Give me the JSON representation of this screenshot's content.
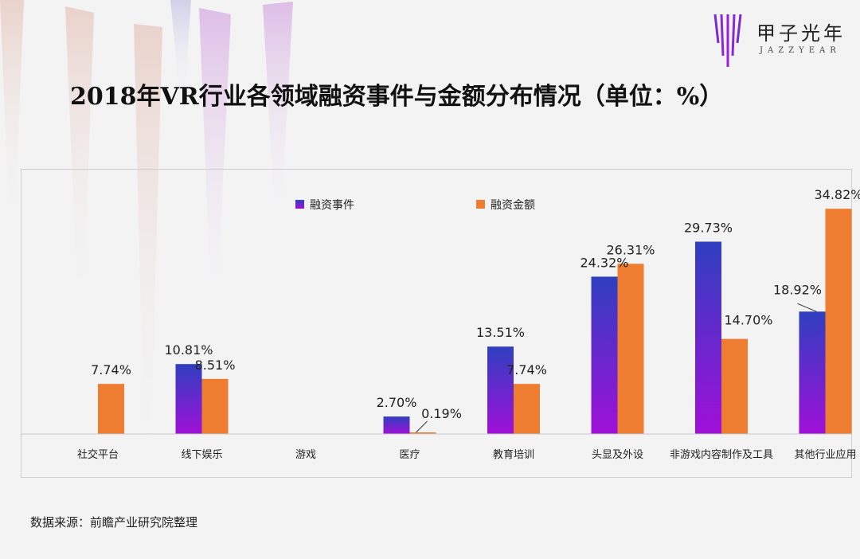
{
  "brand": {
    "name": "甲子光年",
    "subtitle": "JAZZYEAR"
  },
  "title": "2018年VR行业各领域融资事件与金额分布情况（单位：%）",
  "source": "数据来源：前瞻产业研究院整理",
  "colors": {
    "events_top": "#2f3fc0",
    "events_bottom": "#a010d8",
    "amount": "#ee7d31",
    "axis": "#c8c8cc",
    "deco": "#e8c8e8"
  },
  "chart_data": {
    "type": "bar",
    "title": "2018年VR行业各领域融资事件与金额分布情况（单位：%）",
    "categories": [
      "社交平台",
      "线下娱乐",
      "游戏",
      "医疗",
      "教育培训",
      "头显及外设",
      "非游戏内容制作及工具",
      "其他行业应用"
    ],
    "series": [
      {
        "name": "融资事件",
        "values": [
          null,
          10.81,
          null,
          2.7,
          13.51,
          24.32,
          29.73,
          18.92
        ],
        "labels": [
          "",
          "10.81%",
          "",
          "2.70%",
          "13.51%",
          "24.32%",
          "29.73%",
          "18.92%"
        ]
      },
      {
        "name": "融资金额",
        "values": [
          7.74,
          8.51,
          null,
          0.19,
          7.74,
          26.31,
          14.7,
          34.82
        ],
        "labels": [
          "7.74%",
          "8.51%",
          "",
          "0.19%",
          "7.74%",
          "26.31%",
          "14.70%",
          "34.82%"
        ]
      }
    ],
    "ylim": [
      0,
      40
    ],
    "xlabel": "",
    "ylabel": "",
    "legend": "top-center",
    "grid": false
  }
}
